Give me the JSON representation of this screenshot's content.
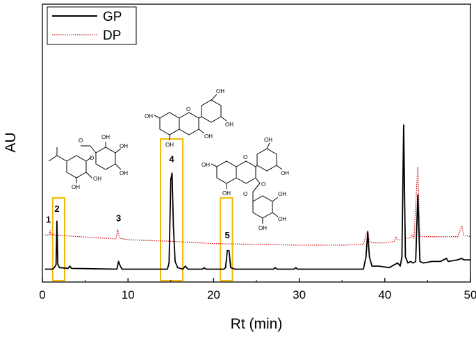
{
  "chart_data": {
    "type": "line",
    "xlabel": "Rt (min)",
    "ylabel": "AU",
    "xlim": [
      0,
      50
    ],
    "xticks": [
      0,
      10,
      20,
      30,
      40,
      50
    ],
    "ylim": [
      0,
      1
    ],
    "grid": false,
    "legend_position": "top-left",
    "series": [
      {
        "name": "GP",
        "color": "#000000",
        "style": "solid",
        "points": [
          [
            0.3,
            0.02
          ],
          [
            1.2,
            0.02
          ],
          [
            1.45,
            0.035
          ],
          [
            1.6,
            0.05
          ],
          [
            1.7,
            0.33
          ],
          [
            1.8,
            0.05
          ],
          [
            2.0,
            0.03
          ],
          [
            3.0,
            0.025
          ],
          [
            3.2,
            0.04
          ],
          [
            3.4,
            0.025
          ],
          [
            8.7,
            0.02
          ],
          [
            8.9,
            0.07
          ],
          [
            9.1,
            0.04
          ],
          [
            9.3,
            0.02
          ],
          [
            14.6,
            0.02
          ],
          [
            14.8,
            0.06
          ],
          [
            15.0,
            0.6
          ],
          [
            15.15,
            0.64
          ],
          [
            15.3,
            0.3
          ],
          [
            15.5,
            0.07
          ],
          [
            15.8,
            0.03
          ],
          [
            16.4,
            0.02
          ],
          [
            16.7,
            0.04
          ],
          [
            17.0,
            0.02
          ],
          [
            18.7,
            0.02
          ],
          [
            18.9,
            0.03
          ],
          [
            19.1,
            0.02
          ],
          [
            21.2,
            0.02
          ],
          [
            21.4,
            0.03
          ],
          [
            21.6,
            0.14
          ],
          [
            21.8,
            0.14
          ],
          [
            22.0,
            0.03
          ],
          [
            22.5,
            0.02
          ],
          [
            27.0,
            0.02
          ],
          [
            27.2,
            0.03
          ],
          [
            27.4,
            0.02
          ],
          [
            29.4,
            0.02
          ],
          [
            29.6,
            0.03
          ],
          [
            29.8,
            0.02
          ],
          [
            37.5,
            0.02
          ],
          [
            37.8,
            0.1
          ],
          [
            38.0,
            0.26
          ],
          [
            38.2,
            0.1
          ],
          [
            38.5,
            0.04
          ],
          [
            39.3,
            0.04
          ],
          [
            40.5,
            0.03
          ],
          [
            41.5,
            0.06
          ],
          [
            41.8,
            0.04
          ],
          [
            42.0,
            0.1
          ],
          [
            42.2,
            0.95
          ],
          [
            42.4,
            0.1
          ],
          [
            42.7,
            0.06
          ],
          [
            43.0,
            0.07
          ],
          [
            43.3,
            0.06
          ],
          [
            43.6,
            0.07
          ],
          [
            43.85,
            0.5
          ],
          [
            44.1,
            0.07
          ],
          [
            44.5,
            0.06
          ],
          [
            45.5,
            0.07
          ],
          [
            46.5,
            0.07
          ],
          [
            47.2,
            0.09
          ],
          [
            47.4,
            0.07
          ],
          [
            48.5,
            0.08
          ],
          [
            49.0,
            0.09
          ],
          [
            49.2,
            0.08
          ],
          [
            50.0,
            0.08
          ]
        ]
      },
      {
        "name": "DP",
        "color": "#d01c1c",
        "style": "dotted",
        "points": [
          [
            0.3,
            0.24
          ],
          [
            0.8,
            0.24
          ],
          [
            0.9,
            0.27
          ],
          [
            1.0,
            0.24
          ],
          [
            1.15,
            0.24
          ],
          [
            1.2,
            0.25
          ],
          [
            1.35,
            0.24
          ],
          [
            8.6,
            0.215
          ],
          [
            8.8,
            0.275
          ],
          [
            9.0,
            0.22
          ],
          [
            10,
            0.21
          ],
          [
            15,
            0.2
          ],
          [
            20,
            0.185
          ],
          [
            25,
            0.18
          ],
          [
            30,
            0.175
          ],
          [
            35,
            0.175
          ],
          [
            37.5,
            0.18
          ],
          [
            37.8,
            0.24
          ],
          [
            38.0,
            0.27
          ],
          [
            38.2,
            0.2
          ],
          [
            38.5,
            0.19
          ],
          [
            40,
            0.19
          ],
          [
            41.1,
            0.2
          ],
          [
            41.3,
            0.23
          ],
          [
            41.5,
            0.21
          ],
          [
            42.0,
            0.21
          ],
          [
            42.2,
            0.66
          ],
          [
            42.4,
            0.22
          ],
          [
            43.0,
            0.22
          ],
          [
            43.2,
            0.24
          ],
          [
            43.4,
            0.22
          ],
          [
            43.85,
            0.68
          ],
          [
            44.1,
            0.23
          ],
          [
            45.5,
            0.23
          ],
          [
            47.0,
            0.23
          ],
          [
            48.5,
            0.23
          ],
          [
            49.0,
            0.3
          ],
          [
            49.2,
            0.24
          ],
          [
            50.0,
            0.23
          ]
        ]
      }
    ],
    "peak_labels": [
      {
        "label": "1",
        "x": 0.7,
        "y": 0.32
      },
      {
        "label": "2",
        "x": 1.7,
        "y": 0.39
      },
      {
        "label": "3",
        "x": 8.9,
        "y": 0.33
      },
      {
        "label": "4",
        "x": 15.1,
        "y": 0.71
      },
      {
        "label": "5",
        "x": 21.6,
        "y": 0.22
      }
    ],
    "highlight_boxes": [
      {
        "x0": 1.2,
        "x1": 2.6,
        "y0": 0.0,
        "y1": 0.48
      },
      {
        "x0": 13.8,
        "x1": 16.4,
        "y0": 0.0,
        "y1": 0.86
      },
      {
        "x0": 20.8,
        "x1": 22.2,
        "y0": 0.0,
        "y1": 0.48
      }
    ],
    "box_color": "#f5b800"
  },
  "structures": {
    "oh": "OH",
    "o": "O"
  }
}
